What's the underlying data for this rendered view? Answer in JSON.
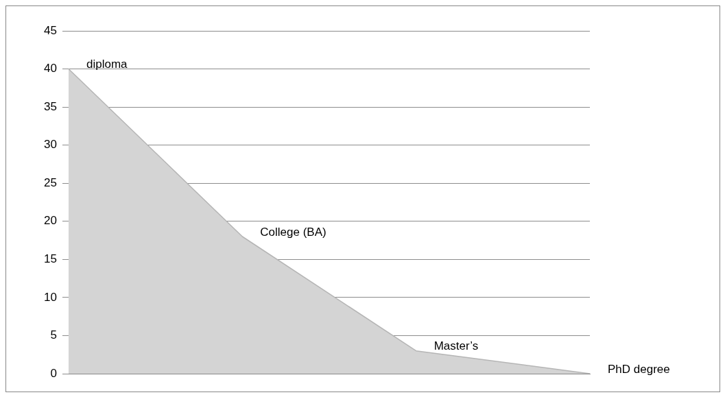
{
  "chart_data": {
    "type": "area",
    "categories": [
      null,
      null,
      null,
      null
    ],
    "series": [
      {
        "color": "#d4d4d4",
        "values": [
          40,
          18,
          3,
          0
        ],
        "value_labels": [
          "diploma",
          "College (BA)",
          "Master’s",
          "PhD degree"
        ]
      }
    ],
    "ylim": [
      0,
      45
    ],
    "yticks": [
      0,
      5,
      10,
      15,
      20,
      25,
      30,
      35,
      40,
      45
    ],
    "grid": "y",
    "legend": false
  }
}
